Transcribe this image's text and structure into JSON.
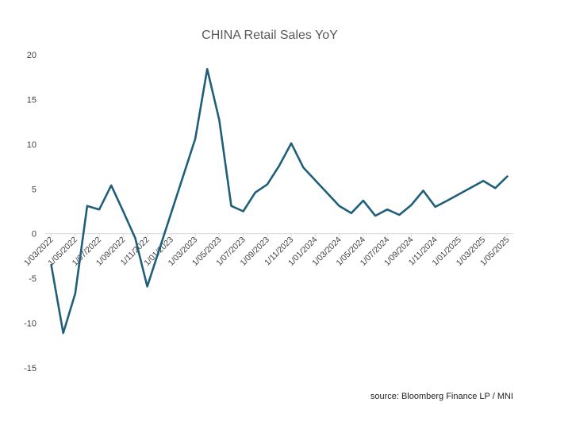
{
  "chart_data": {
    "type": "line",
    "title": "CHINA Retail Sales YoY",
    "source": "source: Bloomberg Finance LP / MNI",
    "xlabel": "",
    "ylabel": "",
    "ylim": [
      -15,
      20
    ],
    "yticks": [
      "20",
      "15",
      "10",
      "5",
      "0",
      "-5",
      "-10",
      "-15"
    ],
    "ytick_values": [
      20,
      15,
      10,
      5,
      0,
      -5,
      -10,
      -15
    ],
    "xtick_labels": [
      "1/03/2022",
      "1/05/2022",
      "1/07/2022",
      "1/09/2022",
      "1/11/2022",
      "1/01/2023",
      "1/03/2023",
      "1/05/2023",
      "1/07/2023",
      "1/09/2023",
      "1/11/2023",
      "1/01/2024",
      "1/03/2024",
      "1/05/2024",
      "1/07/2024",
      "1/09/2024",
      "1/11/2024",
      "1/01/2025",
      "1/03/2025",
      "1/05/2025"
    ],
    "x": [
      "2022-03",
      "2022-04",
      "2022-05",
      "2022-06",
      "2022-07",
      "2022-08",
      "2022-09",
      "2022-10",
      "2022-11",
      "2022-12",
      "2023-03",
      "2023-04",
      "2023-05",
      "2023-06",
      "2023-07",
      "2023-08",
      "2023-09",
      "2023-10",
      "2023-11",
      "2023-12",
      "2024-03",
      "2024-04",
      "2024-05",
      "2024-06",
      "2024-07",
      "2024-08",
      "2024-09",
      "2024-10",
      "2024-11",
      "2024-12",
      "2025-03",
      "2025-04",
      "2025-05"
    ],
    "x_index": [
      0,
      1,
      2,
      3,
      4,
      5,
      6,
      7,
      8,
      9,
      12,
      13,
      14,
      15,
      16,
      17,
      18,
      19,
      20,
      21,
      24,
      25,
      26,
      27,
      28,
      29,
      30,
      31,
      32,
      33,
      36,
      37,
      38
    ],
    "series": [
      {
        "name": "CHINA Retail Sales YoY",
        "color": "#1f5f7a",
        "values": [
          -3.5,
          -11.1,
          -6.7,
          3.1,
          2.7,
          5.4,
          2.5,
          -0.5,
          -5.9,
          -1.8,
          10.6,
          18.4,
          12.7,
          3.1,
          2.5,
          4.6,
          5.5,
          7.6,
          10.1,
          7.4,
          3.1,
          2.3,
          3.7,
          2.0,
          2.7,
          2.1,
          3.2,
          4.8,
          3.0,
          3.7,
          5.9,
          5.1,
          6.4
        ]
      }
    ]
  }
}
